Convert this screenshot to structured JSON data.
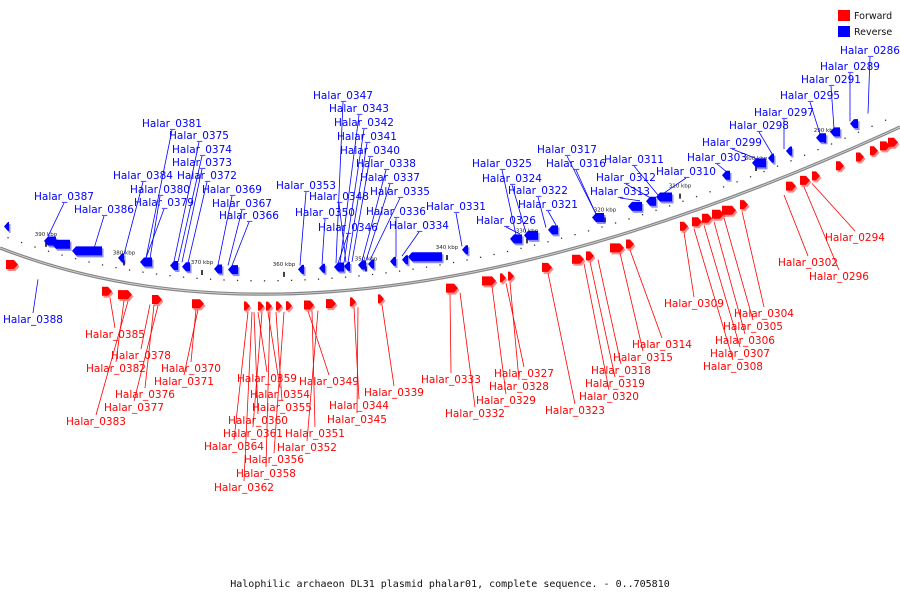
{
  "title": "Halophilic archaeon DL31 plasmid phalar01, complete sequence. - 0..705810",
  "legend": [
    {
      "label": "Forward",
      "color": "#ff0000"
    },
    {
      "label": "Reverse",
      "color": "#0000ff"
    }
  ],
  "ticks": [
    "390 kbp",
    "380 kbp",
    "370 kbp",
    "360 kbp",
    "350 kbp",
    "340 kbp",
    "330 kbp",
    "320 kbp",
    "310 kbp",
    "300 kbp",
    "290 kbp"
  ],
  "reverse_genes": [
    "Halar_0387",
    "Halar_0386",
    "Halar_0384",
    "Halar_0381",
    "Halar_0380",
    "Halar_0379",
    "Halar_0375",
    "Halar_0374",
    "Halar_0373",
    "Halar_0372",
    "Halar_0369",
    "Halar_0367",
    "Halar_0366",
    "Halar_0353",
    "Halar_0347",
    "Halar_0343",
    "Halar_0342",
    "Halar_0341",
    "Halar_0340",
    "Halar_0338",
    "Halar_0337",
    "Halar_0335",
    "Halar_0348",
    "Halar_0350",
    "Halar_0346",
    "Halar_0336",
    "Halar_0334",
    "Halar_0331",
    "Halar_0325",
    "Halar_0324",
    "Halar_0322",
    "Halar_0321",
    "Halar_0326",
    "Halar_0317",
    "Halar_0316",
    "Halar_0311",
    "Halar_0312",
    "Halar_0313",
    "Halar_0310",
    "Halar_0303",
    "Halar_0299",
    "Halar_0298",
    "Halar_0297",
    "Halar_0295",
    "Halar_0291",
    "Halar_0289",
    "Halar_0286",
    "Halar_0388"
  ],
  "forward_genes": [
    "Halar_0385",
    "Halar_0378",
    "Halar_0382",
    "Halar_0376",
    "Halar_0377",
    "Halar_0383",
    "Halar_0370",
    "Halar_0371",
    "Halar_0359",
    "Halar_0354",
    "Halar_0355",
    "Halar_0360",
    "Halar_0361",
    "Halar_0364",
    "Halar_0356",
    "Halar_0358",
    "Halar_0362",
    "Halar_0349",
    "Halar_0351",
    "Halar_0352",
    "Halar_0344",
    "Halar_0345",
    "Halar_0339",
    "Halar_0333",
    "Halar_0332",
    "Halar_0327",
    "Halar_0328",
    "Halar_0329",
    "Halar_0323",
    "Halar_0314",
    "Halar_0315",
    "Halar_0318",
    "Halar_0319",
    "Halar_0320",
    "Halar_0309",
    "Halar_0304",
    "Halar_0305",
    "Halar_0306",
    "Halar_0307",
    "Halar_0308",
    "Halar_0302",
    "Halar_0296",
    "Halar_0294"
  ]
}
